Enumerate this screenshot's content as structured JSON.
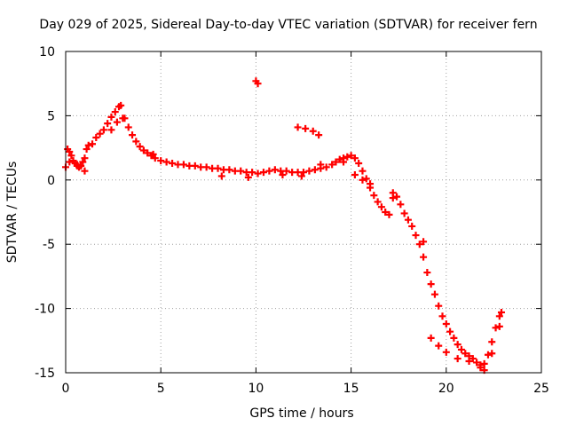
{
  "chart_data": {
    "type": "scatter",
    "title": "Day 029 of 2025, Sidereal Day-to-day VTEC variation (SDTVAR) for receiver fern",
    "xlabel": "GPS time / hours",
    "ylabel": "SDTVAR / TECUs",
    "xlim": [
      0,
      25
    ],
    "ylim": [
      -15,
      10
    ],
    "xticks": [
      0,
      5,
      10,
      15,
      20,
      25
    ],
    "yticks": [
      -15,
      -10,
      -5,
      0,
      5,
      10
    ],
    "xtick_labels": [
      "0",
      "5",
      "10",
      "15",
      "20",
      "25"
    ],
    "ytick_labels": [
      "-15",
      "-10",
      "-5",
      "0",
      "5",
      "10"
    ],
    "grid": true,
    "marker": "plus",
    "series": [
      {
        "name": "SDTVAR",
        "color": "#ff0000",
        "x": [
          0.0,
          0.1,
          0.2,
          0.3,
          0.4,
          0.5,
          0.6,
          0.7,
          0.8,
          0.9,
          1.0,
          1.1,
          1.2,
          1.4,
          1.6,
          1.8,
          2.0,
          2.2,
          2.4,
          2.6,
          2.8,
          2.9,
          3.1,
          3.3,
          3.5,
          3.7,
          3.9,
          4.1,
          4.3,
          4.5,
          4.7,
          5.0,
          5.3,
          5.6,
          5.9,
          6.2,
          6.5,
          6.8,
          7.1,
          7.4,
          7.7,
          8.0,
          8.3,
          8.6,
          8.9,
          9.2,
          9.5,
          9.8,
          10.1,
          10.4,
          10.7,
          11.0,
          11.3,
          11.6,
          11.9,
          12.2,
          12.5,
          12.8,
          13.1,
          13.4,
          13.7,
          14.0,
          14.2,
          14.4,
          14.6,
          14.8,
          15.0,
          15.2,
          15.4,
          15.6,
          15.8,
          16.0,
          16.2,
          16.4,
          16.6,
          16.8,
          17.0,
          17.2,
          17.4,
          17.6,
          17.8,
          18.0,
          18.2,
          18.4,
          18.6,
          18.8,
          19.0,
          19.2,
          19.4,
          19.6,
          19.8,
          20.0,
          20.2,
          20.4,
          20.6,
          20.8,
          21.0,
          21.2,
          21.4,
          21.6,
          21.8,
          22.0,
          22.2,
          22.4,
          22.6,
          22.8,
          22.9,
          10.0,
          10.1,
          12.2,
          12.6,
          13.0,
          13.3,
          0.2,
          0.6,
          1.0,
          2.4,
          2.7,
          3.0,
          4.6,
          8.2,
          9.6,
          11.4,
          12.4,
          13.4,
          14.6,
          15.2,
          15.6,
          16.0,
          17.2,
          18.8,
          19.2,
          19.6,
          20.0,
          20.6,
          21.2,
          21.8,
          22.0,
          22.4,
          22.8
        ],
        "y": [
          1.0,
          2.4,
          2.2,
          1.9,
          1.5,
          1.3,
          1.2,
          1.0,
          1.1,
          1.4,
          1.7,
          2.4,
          2.7,
          2.8,
          3.3,
          3.6,
          3.9,
          4.4,
          4.9,
          5.3,
          5.7,
          5.8,
          4.8,
          4.1,
          3.5,
          3.0,
          2.6,
          2.3,
          2.1,
          1.9,
          1.7,
          1.5,
          1.4,
          1.3,
          1.2,
          1.2,
          1.1,
          1.1,
          1.0,
          1.0,
          0.9,
          0.9,
          0.8,
          0.8,
          0.7,
          0.7,
          0.6,
          0.6,
          0.5,
          0.6,
          0.7,
          0.8,
          0.7,
          0.7,
          0.6,
          0.6,
          0.6,
          0.7,
          0.8,
          0.9,
          1.0,
          1.2,
          1.4,
          1.6,
          1.7,
          1.8,
          1.9,
          1.7,
          1.3,
          0.7,
          0.1,
          -0.6,
          -1.2,
          -1.7,
          -2.1,
          -2.5,
          -2.7,
          -1.4,
          -1.3,
          -1.9,
          -2.6,
          -3.1,
          -3.6,
          -4.3,
          -5.0,
          -6.0,
          -7.2,
          -8.1,
          -8.9,
          -9.8,
          -10.6,
          -11.2,
          -11.8,
          -12.3,
          -12.8,
          -13.2,
          -13.5,
          -13.7,
          -13.9,
          -14.2,
          -14.4,
          -14.3,
          -13.6,
          -12.6,
          -11.5,
          -10.6,
          -10.3,
          7.7,
          7.5,
          4.1,
          4.0,
          3.8,
          3.5,
          1.4,
          1.1,
          0.7,
          3.9,
          4.5,
          4.8,
          2.0,
          0.3,
          0.2,
          0.4,
          0.3,
          1.2,
          1.4,
          0.4,
          0.0,
          -0.3,
          -1.0,
          -4.8,
          -12.3,
          -12.9,
          -13.4,
          -13.9,
          -14.1,
          -14.6,
          -14.8,
          -13.5,
          -11.4
        ]
      }
    ]
  }
}
